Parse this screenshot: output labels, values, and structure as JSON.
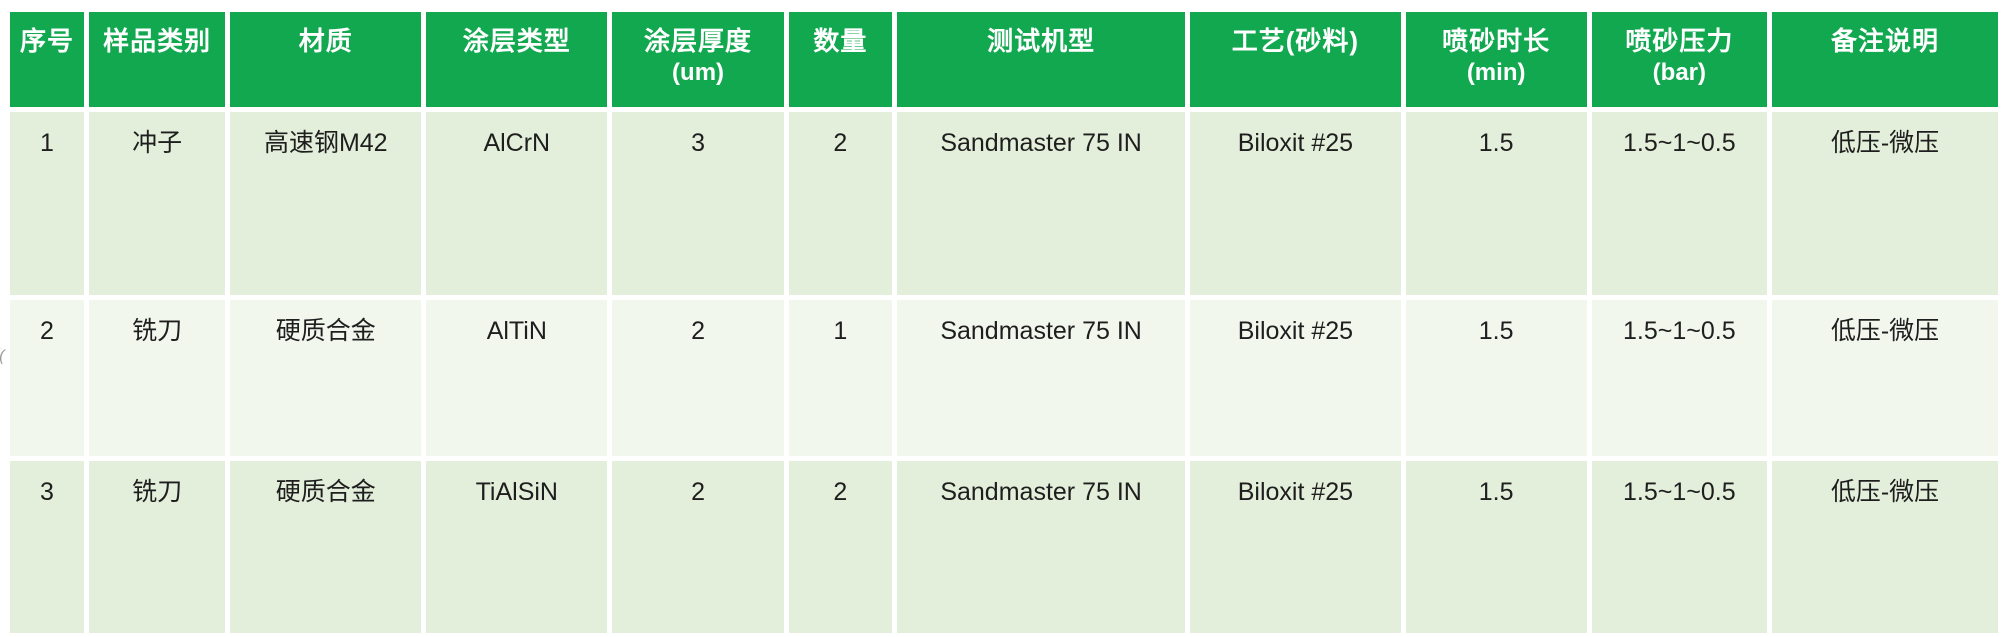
{
  "colors": {
    "header_bg": "#11A84F",
    "header_text": "#FFFFFF",
    "row_band_a_bg": "#E3EFDA",
    "row_band_b_bg": "#F2F7EE",
    "body_text": "#1E1E1E",
    "gap_white": "#FFFFFF"
  },
  "table": {
    "columns": [
      {
        "label": "序号",
        "unit": ""
      },
      {
        "label": "样品类别",
        "unit": ""
      },
      {
        "label": "材质",
        "unit": ""
      },
      {
        "label": "涂层类型",
        "unit": ""
      },
      {
        "label": "涂层厚度",
        "unit": "(um)"
      },
      {
        "label": "数量",
        "unit": ""
      },
      {
        "label": "测试机型",
        "unit": ""
      },
      {
        "label": "工艺(砂料)",
        "unit": ""
      },
      {
        "label": "喷砂时长",
        "unit": "(min)"
      },
      {
        "label": "喷砂压力",
        "unit": "(bar)"
      },
      {
        "label": "备注说明",
        "unit": ""
      }
    ],
    "rows": [
      {
        "cells": [
          "1",
          "冲子",
          "高速钢M42",
          "AlCrN",
          "3",
          "2",
          "Sandmaster 75 IN",
          "Biloxit #25",
          "1.5",
          "1.5~1~0.5",
          "低压-微压"
        ]
      },
      {
        "cells": [
          "2",
          "铣刀",
          "硬质合金",
          "AlTiN",
          "2",
          "1",
          "Sandmaster 75 IN",
          "Biloxit #25",
          "1.5",
          "1.5~1~0.5",
          "低压-微压"
        ]
      },
      {
        "cells": [
          "3",
          "铣刀",
          "硬质合金",
          "TiAlSiN",
          "2",
          "2",
          "Sandmaster 75 IN",
          "Biloxit #25",
          "1.5",
          "1.5~1~0.5",
          "低压-微压"
        ]
      }
    ]
  },
  "artifact": {
    "mark": "(("
  }
}
